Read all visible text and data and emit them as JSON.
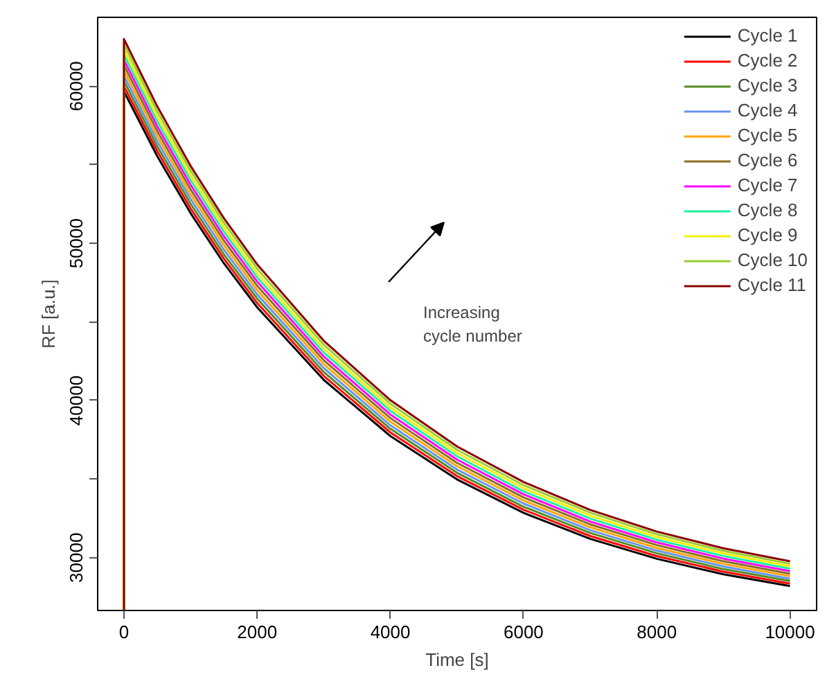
{
  "chart_data": {
    "type": "line",
    "xlabel": "Time [s]",
    "ylabel": "RF [a.u.]",
    "x": [
      0,
      0,
      500,
      1000,
      1500,
      2000,
      3000,
      4000,
      5000,
      6000,
      7000,
      8000,
      9000,
      10000
    ],
    "series": [
      {
        "name": "Cycle 1",
        "color": "#000000",
        "values": [
          26700,
          59660,
          55540,
          51920,
          48730,
          45930,
          41310,
          37740,
          34980,
          32850,
          31200,
          29930,
          28940,
          28190
        ]
      },
      {
        "name": "Cycle 2",
        "color": "#ff0000",
        "values": [
          26700,
          59990,
          55860,
          52220,
          49020,
          46200,
          41560,
          37970,
          35190,
          33050,
          31380,
          30100,
          29110,
          28350
        ]
      },
      {
        "name": "Cycle 3",
        "color": "#548b24",
        "values": [
          26700,
          60330,
          56170,
          52520,
          49300,
          46480,
          41810,
          38200,
          35400,
          33240,
          31570,
          30280,
          29270,
          28510
        ]
      },
      {
        "name": "Cycle 4",
        "color": "#6495ed",
        "values": [
          26700,
          60660,
          56490,
          52820,
          49590,
          46750,
          42060,
          38420,
          35610,
          33440,
          31750,
          30450,
          29440,
          28660
        ]
      },
      {
        "name": "Cycle 5",
        "color": "#ffa500",
        "values": [
          26700,
          61000,
          56810,
          53120,
          49880,
          47020,
          42310,
          38650,
          35820,
          33630,
          31940,
          30620,
          29600,
          28820
        ]
      },
      {
        "name": "Cycle 6",
        "color": "#8b6d22",
        "values": [
          26700,
          61330,
          57130,
          53430,
          50170,
          47300,
          42560,
          38880,
          36030,
          33830,
          32120,
          30800,
          29770,
          28980
        ]
      },
      {
        "name": "Cycle 7",
        "color": "#ff00ff",
        "values": [
          26700,
          61660,
          57440,
          53730,
          50450,
          47570,
          42800,
          39110,
          36240,
          34030,
          32300,
          30970,
          29940,
          29140
        ]
      },
      {
        "name": "Cycle 8",
        "color": "#1ef0a0",
        "values": [
          26700,
          62000,
          57760,
          54030,
          50740,
          47840,
          43050,
          39340,
          36450,
          34220,
          32490,
          31140,
          30100,
          29300
        ]
      },
      {
        "name": "Cycle 9",
        "color": "#f0f000",
        "values": [
          26700,
          62330,
          58080,
          54330,
          51030,
          48110,
          43300,
          39560,
          36660,
          34420,
          32670,
          31310,
          30270,
          29450
        ]
      },
      {
        "name": "Cycle 10",
        "color": "#9acd32",
        "values": [
          26700,
          62670,
          58390,
          54630,
          51310,
          48390,
          43550,
          39790,
          36870,
          34610,
          32860,
          31490,
          30430,
          29610
        ]
      },
      {
        "name": "Cycle 11",
        "color": "#8b0000",
        "values": [
          26700,
          63000,
          58710,
          54930,
          51600,
          48660,
          43800,
          40020,
          37080,
          34810,
          33040,
          31660,
          30600,
          29770
        ]
      }
    ],
    "annotations": [
      "Increasing\ncycle number"
    ],
    "xlim": [
      -395,
      10400
    ],
    "ylim": [
      26640,
      64380
    ],
    "xticks": [
      0,
      2000,
      4000,
      6000,
      8000,
      10000
    ],
    "yticks": [
      30000,
      {
        "value": 35000,
        "label": null
      },
      40000,
      {
        "value": 45000,
        "label": null
      },
      50000,
      {
        "value": 55000,
        "label": null
      },
      60000
    ],
    "legend": "top right",
    "grid": false,
    "line_style": "solid"
  }
}
